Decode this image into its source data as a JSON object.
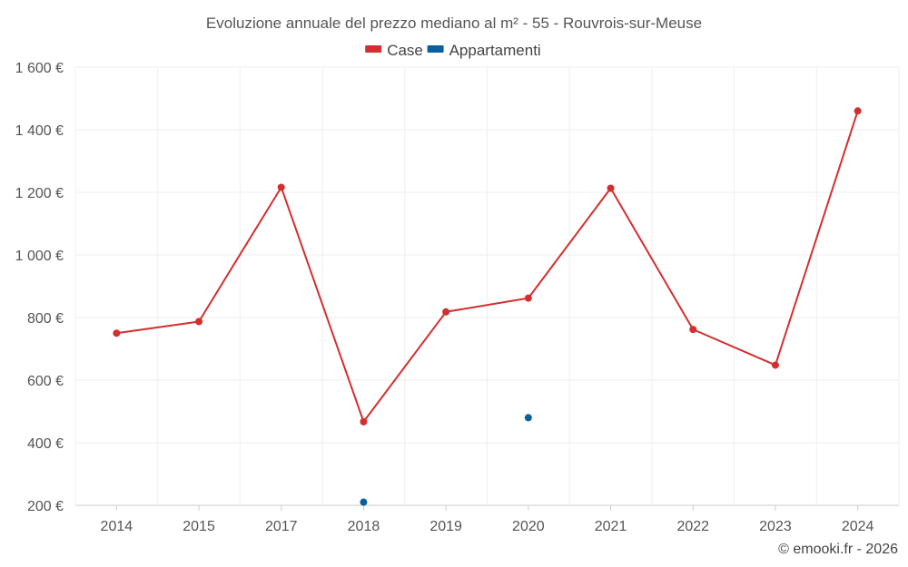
{
  "chart_data": {
    "type": "line",
    "title": "Evoluzione annuale del prezzo mediano al m² - 55 - Rouvrois-sur-Meuse",
    "categories": [
      "2014",
      "2015",
      "2017",
      "2018",
      "2019",
      "2020",
      "2021",
      "2022",
      "2023",
      "2024"
    ],
    "series": [
      {
        "name": "Case",
        "color": "#d32f2f",
        "values": [
          750,
          787,
          1216,
          467,
          818,
          862,
          1213,
          762,
          648,
          1460
        ]
      },
      {
        "name": "Appartamenti",
        "color": "#0a5f9e",
        "values": [
          null,
          null,
          null,
          210,
          null,
          480,
          null,
          null,
          null,
          null
        ]
      }
    ],
    "ylim": [
      200,
      1600
    ],
    "yticks": [
      200,
      400,
      600,
      800,
      1000,
      1200,
      1400,
      1600
    ],
    "ytick_labels": [
      "200 €",
      "400 €",
      "600 €",
      "800 €",
      "1 000 €",
      "1 200 €",
      "1 400 €",
      "1 600 €"
    ],
    "xlabel": "",
    "ylabel": "",
    "grid": true,
    "legend_position": "top-center"
  },
  "credit": "© emooki.fr - 2026"
}
